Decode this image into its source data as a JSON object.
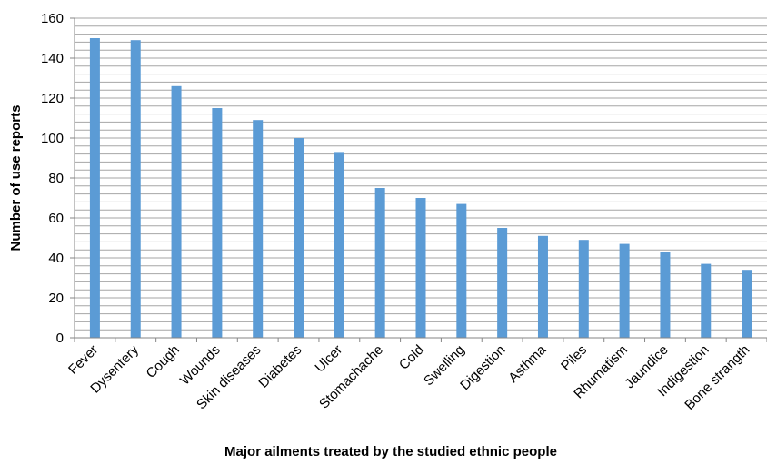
{
  "chart_data": {
    "type": "bar",
    "title": "",
    "xlabel": "Major ailments treated by the studied ethnic people",
    "ylabel": "Number of use reports",
    "categories": [
      "Fever",
      "Dysentery",
      "Cough",
      "Wounds",
      "Skin diseases",
      "Diabetes",
      "Ulcer",
      "Stomachache",
      "Cold",
      "Swelling",
      "Digestion",
      "Asthma",
      "Piles",
      "Rhumatism",
      "Jaundice",
      "Indigestion",
      "Bone strangth"
    ],
    "values": [
      150,
      149,
      126,
      115,
      109,
      100,
      93,
      75,
      70,
      67,
      55,
      51,
      49,
      47,
      43,
      37,
      34
    ],
    "ylim": [
      0,
      160
    ],
    "yticks": [
      0,
      20,
      40,
      60,
      80,
      100,
      120,
      140,
      160
    ],
    "minor_grid_step": 4,
    "grid": true,
    "legend": "none",
    "bar_color": "#5b9bd5",
    "grid_color": "#a6a6a6",
    "axis_color": "#868686"
  }
}
